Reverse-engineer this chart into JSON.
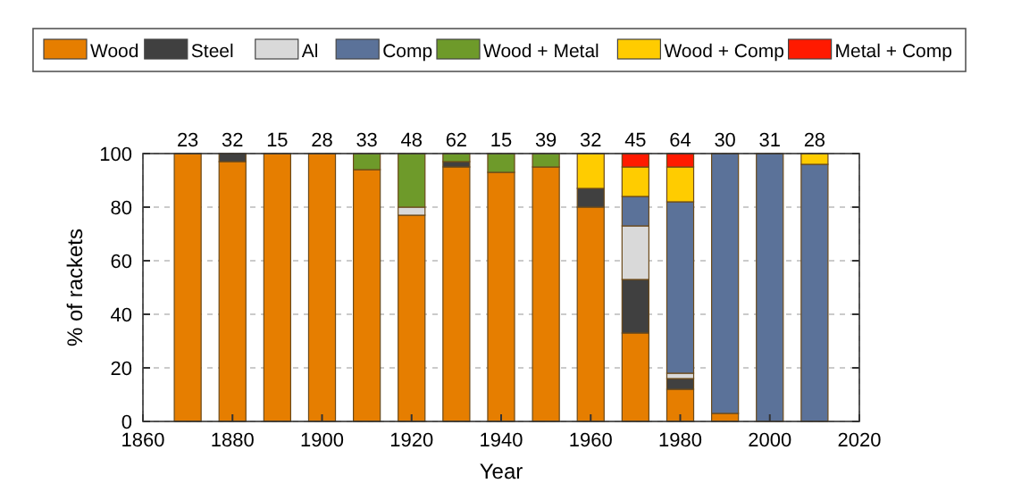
{
  "chart_data": {
    "type": "bar",
    "stacked": true,
    "xlabel": "Year",
    "ylabel": "% of rackets",
    "x": [
      1870,
      1880,
      1890,
      1900,
      1910,
      1920,
      1930,
      1940,
      1950,
      1960,
      1970,
      1980,
      1990,
      2000,
      2010
    ],
    "series": [
      {
        "name": "Wood",
        "color": "#e67e00",
        "values": [
          100,
          97,
          100,
          100,
          94,
          77,
          95,
          93,
          95,
          80,
          33,
          12,
          3,
          0,
          0
        ]
      },
      {
        "name": "Steel",
        "color": "#404040",
        "values": [
          0,
          3,
          0,
          0,
          0,
          0,
          2,
          0,
          0,
          7,
          20,
          4,
          0,
          0,
          0
        ]
      },
      {
        "name": "Al",
        "color": "#d9d9d9",
        "values": [
          0,
          0,
          0,
          0,
          0,
          3,
          0,
          0,
          0,
          0,
          20,
          2,
          0,
          0,
          0
        ]
      },
      {
        "name": "Comp",
        "color": "#5b7299",
        "values": [
          0,
          0,
          0,
          0,
          0,
          0,
          0,
          0,
          0,
          0,
          11,
          64,
          97,
          100,
          96
        ]
      },
      {
        "name": "Wood + Metal",
        "color": "#6e9a2a",
        "values": [
          0,
          0,
          0,
          0,
          6,
          20,
          3,
          7,
          5,
          0,
          0,
          0,
          0,
          0,
          0
        ]
      },
      {
        "name": "Wood + Comp",
        "color": "#ffcc00",
        "values": [
          0,
          0,
          0,
          0,
          0,
          0,
          0,
          0,
          0,
          13,
          11,
          13,
          0,
          0,
          4
        ]
      },
      {
        "name": "Metal + Comp",
        "color": "#ff1a00",
        "values": [
          0,
          0,
          0,
          0,
          0,
          0,
          0,
          0,
          0,
          0,
          5,
          5,
          0,
          0,
          0
        ]
      }
    ],
    "annotations": [
      {
        "text": "23",
        "x": 1870,
        "y": 100
      },
      {
        "text": "32",
        "x": 1880,
        "y": 100
      },
      {
        "text": "15",
        "x": 1890,
        "y": 100
      },
      {
        "text": "28",
        "x": 1900,
        "y": 100
      },
      {
        "text": "33",
        "x": 1910,
        "y": 100
      },
      {
        "text": "48",
        "x": 1920,
        "y": 100
      },
      {
        "text": "62",
        "x": 1930,
        "y": 100
      },
      {
        "text": "15",
        "x": 1940,
        "y": 100
      },
      {
        "text": "39",
        "x": 1950,
        "y": 100
      },
      {
        "text": "32",
        "x": 1960,
        "y": 100
      },
      {
        "text": "45",
        "x": 1970,
        "y": 100
      },
      {
        "text": "64",
        "x": 1980,
        "y": 100
      },
      {
        "text": "30",
        "x": 1990,
        "y": 100
      },
      {
        "text": "31",
        "x": 2000,
        "y": 100
      },
      {
        "text": "28",
        "x": 2010,
        "y": 100
      }
    ],
    "xlim": [
      1860,
      2020
    ],
    "xticks": [
      1860,
      1880,
      1900,
      1920,
      1940,
      1960,
      1980,
      2000,
      2020
    ],
    "ylim": [
      0,
      100
    ],
    "yticks": [
      0,
      20,
      40,
      60,
      80,
      100
    ],
    "grid": true,
    "legend": "top"
  }
}
